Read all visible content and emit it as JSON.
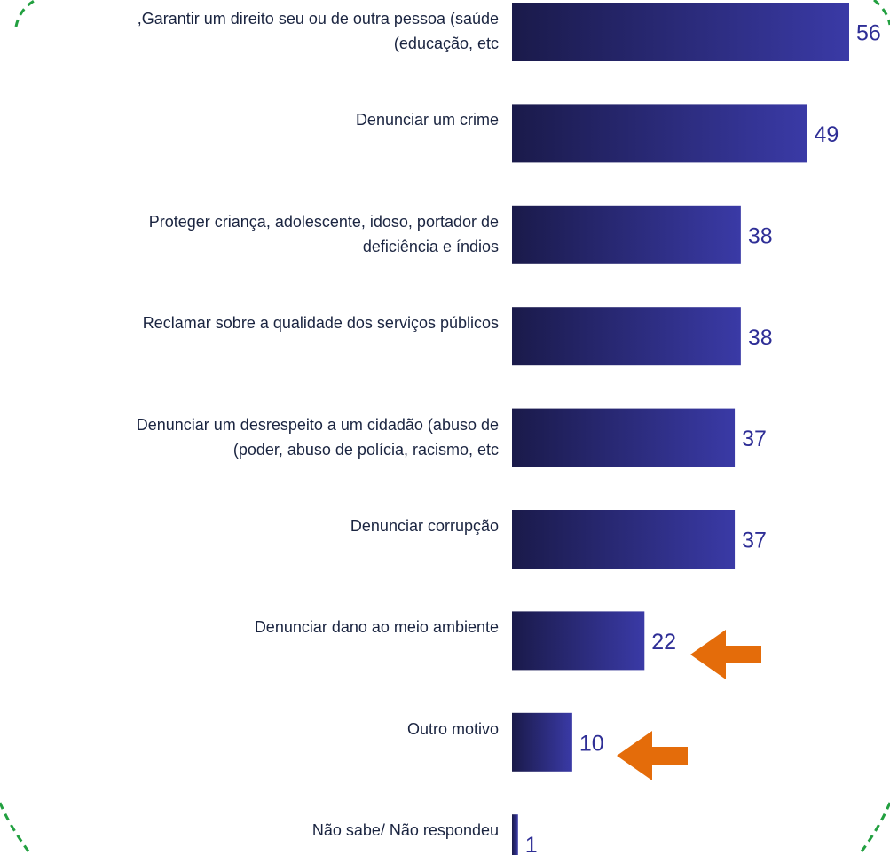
{
  "chart_data": {
    "type": "hbar",
    "categories": [
      ",Garantir um direito seu ou de outra pessoa (saúde\n(educação, etc",
      "Denunciar um crime",
      "Proteger criança, adolescente, idoso, portador de\ndeficiência e índios",
      "Reclamar sobre a qualidade dos serviços públicos",
      "Denunciar um desrespeito a um cidadão (abuso de\n(poder, abuso de polícia, racismo, etc",
      "Denunciar corrupção",
      "Denunciar dano ao meio ambiente",
      "Outro motivo",
      "Não sabe/ Não respondeu"
    ],
    "values": [
      56,
      49,
      38,
      38,
      37,
      37,
      22,
      10,
      1
    ],
    "color": [
      "#1a1a4a",
      "#3a3aa6"
    ]
  }
}
